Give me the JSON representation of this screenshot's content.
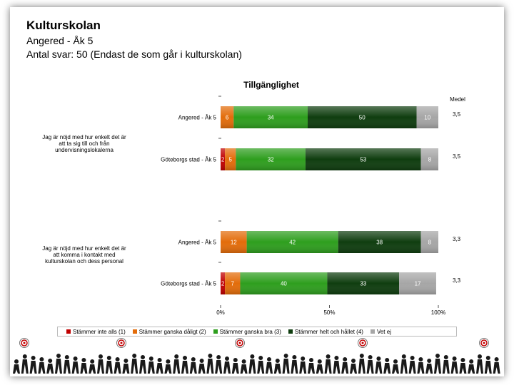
{
  "header": {
    "title": "Kulturskolan",
    "subtitle": "Angered - Åk 5",
    "respondents": "Antal svar: 50 (Endast de som går i kulturskolan)"
  },
  "chart_data": {
    "type": "bar",
    "orientation": "horizontal",
    "stacked": true,
    "percent_scale": true,
    "title": "Tillgänglighet",
    "mean_header": "Medel",
    "xlim": [
      0,
      100
    ],
    "x_ticks": [
      "0%",
      "50%",
      "100%"
    ],
    "colors": [
      "#c00000",
      "#e36c0a",
      "#2e9e1e",
      "#0f3d0f",
      "#a6a6a6"
    ],
    "groups": [
      {
        "label": "Jag är nöjd med hur enkelt det är att ta sig till och från undervisningslokalerna",
        "rows": [
          {
            "label": "Angered - Åk 5",
            "values": [
              0,
              6,
              34,
              50,
              10
            ],
            "value_labels": [
              "0",
              "6",
              "34",
              "50",
              "10"
            ],
            "mean": "3,5"
          },
          {
            "label": "Göteborgs stad - Åk 5",
            "values": [
              2,
              5,
              32,
              53,
              8
            ],
            "value_labels": [
              "2",
              "5",
              "32",
              "53",
              "8"
            ],
            "mean": "3,5"
          }
        ]
      },
      {
        "label": "Jag är nöjd med hur enkelt det är att komma i kontakt med kulturskolan och dess personal",
        "rows": [
          {
            "label": "Angered - Åk 5",
            "values": [
              0,
              12,
              42,
              38,
              8
            ],
            "value_labels": [
              "0",
              "12",
              "42",
              "38",
              "8"
            ],
            "mean": "3,3"
          },
          {
            "label": "Göteborgs stad - Åk 5",
            "values": [
              2,
              7,
              40,
              33,
              17
            ],
            "value_labels": [
              "2",
              "7",
              "40",
              "33",
              "17"
            ],
            "mean": "3,3"
          }
        ]
      }
    ],
    "legend": [
      "Stämmer inte alls (1)",
      "Stämmer ganska dåligt (2)",
      "Stämmer ganska bra (3)",
      "Stämmer helt och hållet (4)",
      "Vet ej"
    ],
    "legend_placement": "bottom"
  }
}
